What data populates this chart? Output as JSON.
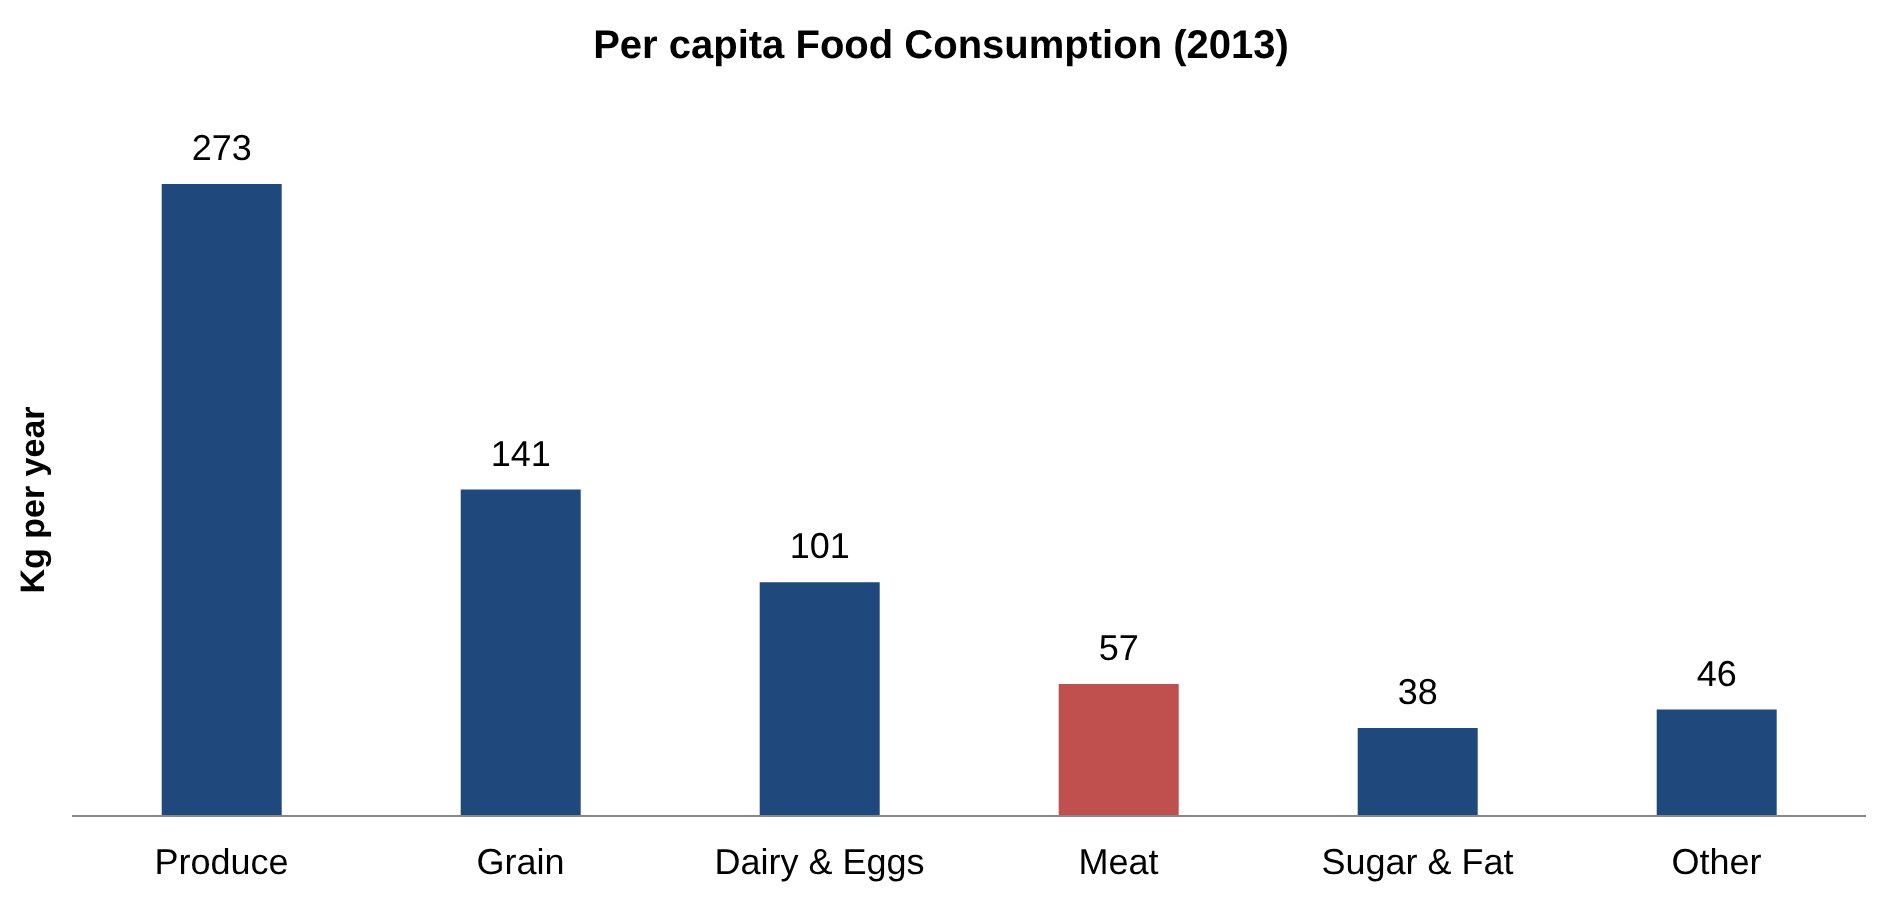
{
  "chart_data": {
    "type": "bar",
    "title": "Per capita Food Consumption (2013)",
    "ylabel": "Kg per year",
    "categories": [
      "Produce",
      "Grain",
      "Dairy & Eggs",
      "Meat",
      "Sugar & Fat",
      "Other"
    ],
    "values": [
      273,
      141,
      101,
      57,
      38,
      46
    ],
    "colors": [
      "#1f497d",
      "#1f497d",
      "#1f497d",
      "#c0504d",
      "#1f497d",
      "#1f497d"
    ],
    "data_labels": true,
    "grid": false,
    "legend": false
  }
}
